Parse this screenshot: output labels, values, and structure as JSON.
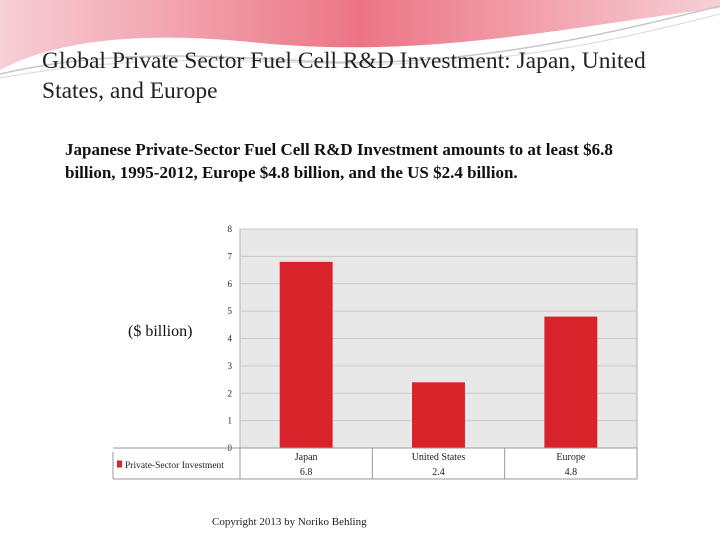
{
  "slide": {
    "title": "Global Private Sector Fuel Cell R&D Investment: Japan, United States, and Europe",
    "subtitle": "Japanese Private-Sector Fuel Cell R&D Investment amounts to at least $6.8 billion, 1995-2012, Europe $4.8 billion, and the US $2.4 billion.",
    "copyright": "Copyright 2013 by Noriko Behling"
  },
  "chart_data": {
    "type": "bar",
    "categories": [
      "Japan",
      "United States",
      "Europe"
    ],
    "series": [
      {
        "name": "Private-Sector Investment",
        "values": [
          6.8,
          2.4,
          4.8
        ],
        "color": "#d9232a"
      }
    ],
    "data_labels": [
      "6.8",
      "2.4",
      "4.8"
    ],
    "ylabel": "($ billion)",
    "ylim": [
      0,
      8
    ],
    "yticks": [
      0,
      1,
      2,
      3,
      4,
      5,
      6,
      7,
      8
    ],
    "grid": true,
    "legend": "data-table-left",
    "plot_background": "#e8e8e8"
  }
}
